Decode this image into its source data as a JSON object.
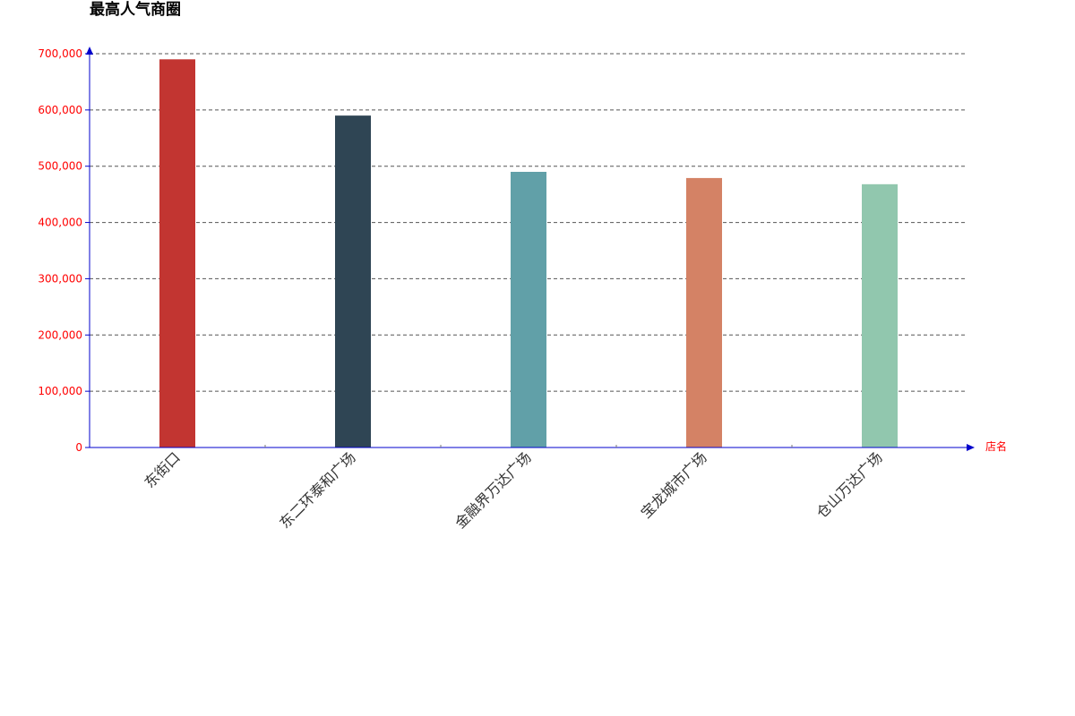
{
  "chart_data": {
    "type": "bar",
    "title": "最高人气商圈",
    "xlabel": "店名",
    "ylabel": "",
    "categories": [
      "东街口",
      "东二环泰和广场",
      "金融界万达广场",
      "宝龙城市广场",
      "仓山万达广场"
    ],
    "values": [
      690000,
      590000,
      490000,
      479000,
      468000
    ],
    "ylim": [
      0,
      700000
    ],
    "yticks": [
      0,
      100000,
      200000,
      300000,
      400000,
      500000,
      600000,
      700000
    ],
    "ytick_labels": [
      "0",
      "100,000",
      "200,000",
      "300,000",
      "400,000",
      "500,000",
      "600,000",
      "700,000"
    ],
    "bar_colors": [
      "#c23531",
      "#2f4554",
      "#61a0a8",
      "#d48265",
      "#91c7ae"
    ],
    "axis_color": "#0000cc",
    "label_color": "#ff0000",
    "grid": true,
    "legend": "none"
  }
}
